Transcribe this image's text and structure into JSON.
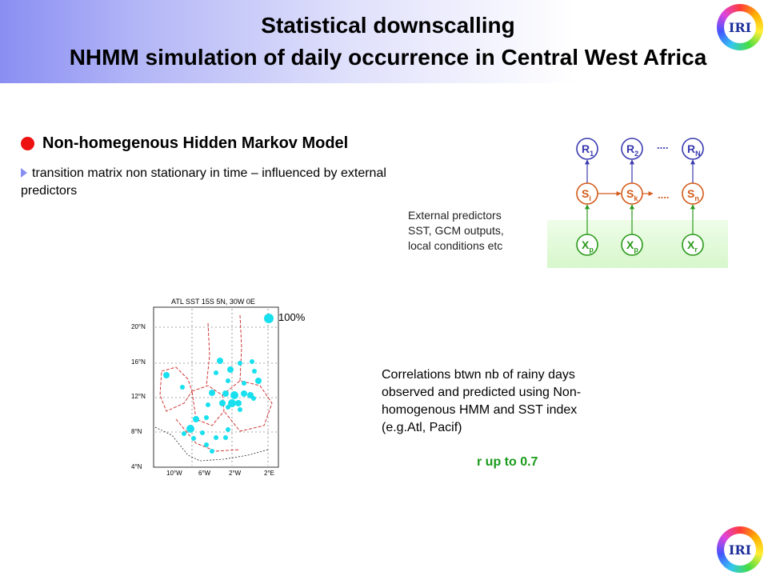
{
  "title": {
    "line1": "Statistical downscalling",
    "line2": "NHMM simulation of daily occurrence in Central West Africa"
  },
  "logo": {
    "text": "IRI"
  },
  "heading": "Non-homegenous Hidden Markov Model",
  "bullet": "transition matrix non stationary in time – influenced by external predictors",
  "external": {
    "line1": "External predictors",
    "line2": "SST, GCM outputs,",
    "line3": "local conditions etc"
  },
  "diagram": {
    "r_nodes": [
      {
        "letter": "R",
        "sub": "1"
      },
      {
        "letter": "R",
        "sub": "2"
      },
      {
        "letter": "R",
        "sub": "N"
      }
    ],
    "s_nodes": [
      {
        "letter": "S",
        "sub": "i"
      },
      {
        "letter": "S",
        "sub": "k"
      },
      {
        "letter": "S",
        "sub": "n"
      }
    ],
    "x_nodes": [
      {
        "letter": "X",
        "sub": "p"
      },
      {
        "letter": "X",
        "sub": "p"
      },
      {
        "letter": "X",
        "sub": "r"
      }
    ],
    "ellipsis_top": "....",
    "ellipsis_mid": "....",
    "colors": {
      "r": "#3a3ab0",
      "s": "#d35a1a",
      "x": "#2a9a1a"
    }
  },
  "map": {
    "title": "ATL SST 15S 5N, 30W 0E",
    "y_ticks": [
      "20°N",
      "16°N",
      "12°N",
      "8°N",
      "4°N"
    ],
    "x_ticks": [
      "10°W",
      "6°W",
      "2°W",
      "2°E"
    ],
    "legend": "100%",
    "dot_color": "#19e0ee"
  },
  "correlation": {
    "line1": "Correlations btwn nb of rainy days",
    "line2": "observed and predicted using Non-",
    "line3": "homogenous HMM and SST index",
    "line4": "(e.g.Atl, Pacif)"
  },
  "r_result": "r up to 0.7"
}
